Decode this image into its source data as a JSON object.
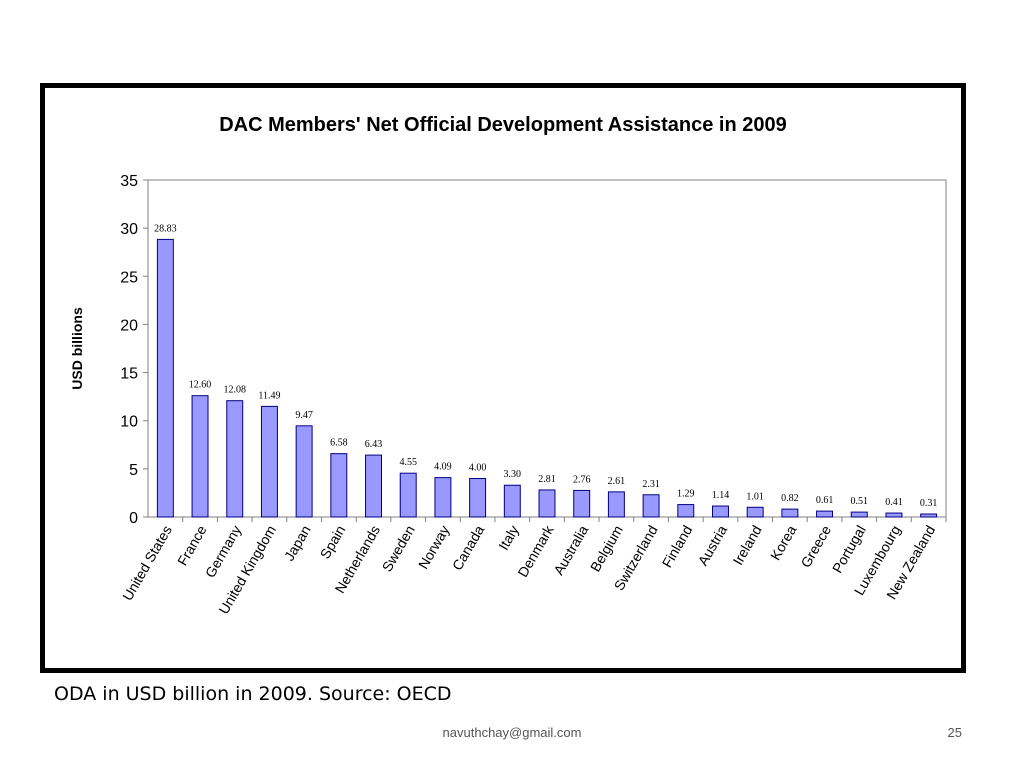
{
  "chart_data": {
    "type": "bar",
    "title": "DAC Members' Net Official Development Assistance in 2009",
    "ylabel": "USD billions",
    "xlabel": "",
    "ylim": [
      0,
      35
    ],
    "yticks": [
      0,
      5,
      10,
      15,
      20,
      25,
      30,
      35
    ],
    "grid": false,
    "legend": "none",
    "bar_color": "#9999ff",
    "categories": [
      "United States",
      "France",
      "Germany",
      "United Kingdom",
      "Japan",
      "Spain",
      "Netherlands",
      "Sweden",
      "Norway",
      "Canada",
      "Italy",
      "Denmark",
      "Australia",
      "Belgium",
      "Switzerland",
      "Finland",
      "Austria",
      "Ireland",
      "Korea",
      "Greece",
      "Portugal",
      "Luxembourg",
      "New Zealand"
    ],
    "values": [
      28.83,
      12.6,
      12.08,
      11.49,
      9.47,
      6.58,
      6.43,
      4.55,
      4.09,
      4.0,
      3.3,
      2.81,
      2.76,
      2.61,
      2.31,
      1.29,
      1.14,
      1.01,
      0.82,
      0.61,
      0.51,
      0.41,
      0.31
    ],
    "value_labels": [
      "28.83",
      "12.60",
      "12.08",
      "11.49",
      "9.47",
      "6.58",
      "6.43",
      "4.55",
      "4.09",
      "4.00",
      "3.30",
      "2.81",
      "2.76",
      "2.61",
      "2.31",
      "1.29",
      "1.14",
      "1.01",
      "0.82",
      "0.61",
      "0.51",
      "0.41",
      "0.31"
    ]
  },
  "caption": "ODA in USD billion in 2009. Source: OECD",
  "footer": {
    "email": "navuthchay@gmail.com",
    "page_number": "25"
  }
}
